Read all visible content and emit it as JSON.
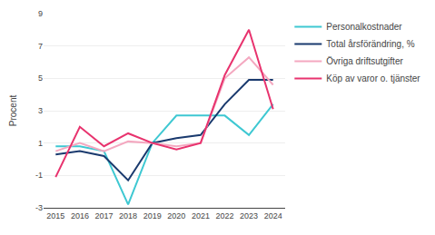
{
  "chart_data": {
    "type": "line",
    "x": [
      2015,
      2016,
      2017,
      2018,
      2019,
      2020,
      2021,
      2022,
      2023,
      2024
    ],
    "series": [
      {
        "name": "Personalkostnader",
        "color": "#3ec8d2",
        "values": [
          0.8,
          0.8,
          0.5,
          -2.8,
          1.0,
          2.7,
          2.7,
          2.7,
          1.5,
          3.4
        ]
      },
      {
        "name": "Total årsförändring, %",
        "color": "#1a3a6e",
        "values": [
          0.3,
          0.5,
          0.2,
          -1.3,
          1.0,
          1.3,
          1.5,
          3.4,
          4.9,
          4.9
        ]
      },
      {
        "name": "Övriga driftsutgifter",
        "color": "#f4a8c0",
        "values": [
          0.5,
          1.0,
          0.5,
          1.1,
          1.0,
          0.8,
          1.0,
          5.0,
          6.3,
          4.6
        ]
      },
      {
        "name": "Köp av varor o. tjänster",
        "color": "#e8336e",
        "values": [
          -1.1,
          2.0,
          0.8,
          1.6,
          1.0,
          0.6,
          1.0,
          5.2,
          8.0,
          3.1
        ]
      }
    ],
    "ylabel": "Procent",
    "xlim": [
      2014.5,
      2024.5
    ],
    "xticks": [
      2015,
      2016,
      2017,
      2018,
      2019,
      2020,
      2021,
      2022,
      2023,
      2024
    ],
    "ylim": [
      -3,
      9
    ],
    "yticks": [
      -3,
      -1,
      1,
      3,
      5,
      7,
      9
    ],
    "grid": true,
    "legend": "upper right"
  }
}
